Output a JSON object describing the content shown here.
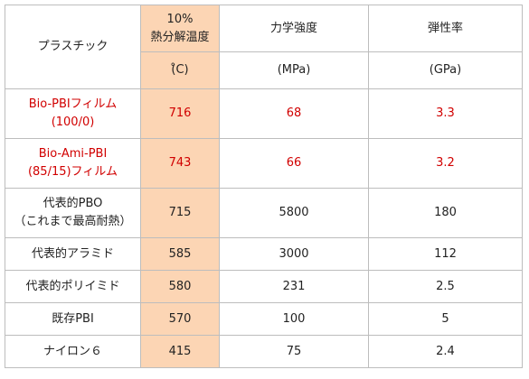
{
  "header": {
    "col1": "プラスチック",
    "col2_line1": "10%",
    "col2_line2": "熱分解温度",
    "col3": "力学強度",
    "col4": "弾性率",
    "units": {
      "col2": "(̊C)",
      "col3": "(MPa)",
      "col4": "(GPa)"
    }
  },
  "rows": [
    {
      "name_line1": "Bio-PBIフィルム",
      "name_line2": "(100/0)",
      "temp": "716",
      "strength": "68",
      "modulus": "3.3"
    },
    {
      "name_line1": "Bio-Ami-PBI",
      "name_line2": "(85/15)フィルム",
      "temp": "743",
      "strength": "66",
      "modulus": "3.2"
    },
    {
      "name_line1": "代表的PBO",
      "name_line2": "（これまで最高耐熱）",
      "temp": "715",
      "strength": "5800",
      "modulus": "180"
    },
    {
      "name_line1": "代表的アラミド",
      "temp": "585",
      "strength": "3000",
      "modulus": "112"
    },
    {
      "name_line1": "代表的ポリイミド",
      "temp": "580",
      "strength": "231",
      "modulus": "2.5"
    },
    {
      "name_line1": "既存PBI",
      "temp": "570",
      "strength": "100",
      "modulus": "5"
    },
    {
      "name_line1": "ナイロン６",
      "temp": "415",
      "strength": "75",
      "modulus": "2.4"
    }
  ],
  "colors": {
    "highlight_column": "#fcd5b4",
    "emphasis_text": "#d10000",
    "grid": "#bdbdbd"
  }
}
